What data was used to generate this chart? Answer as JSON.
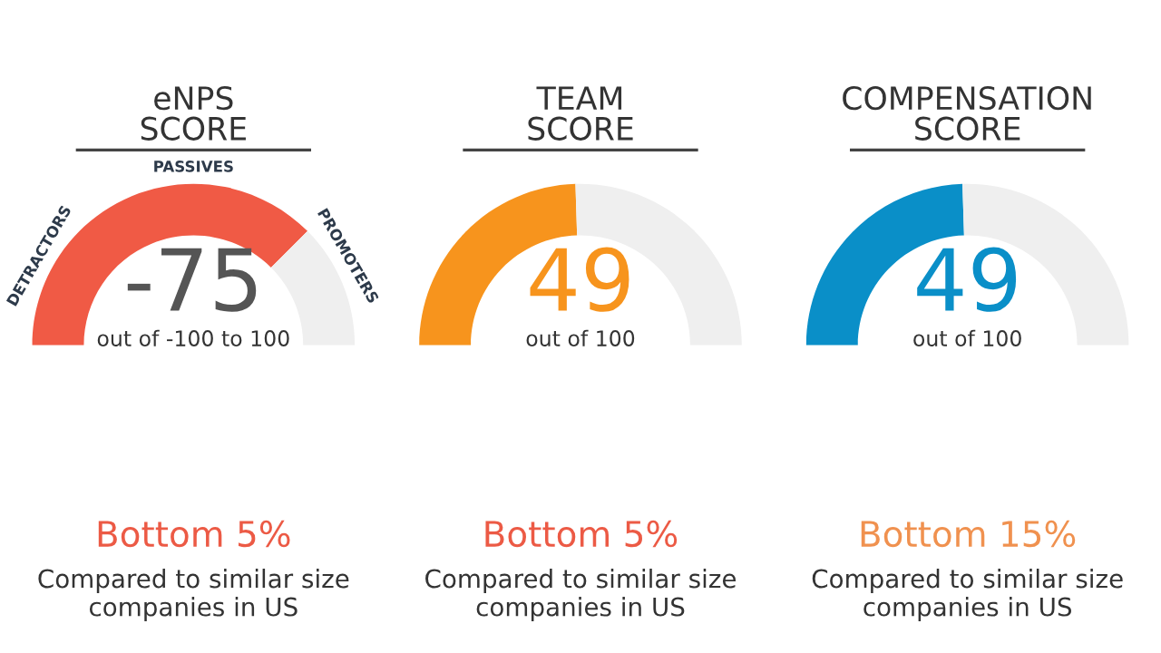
{
  "chart_data": [
    {
      "type": "donut",
      "title": "eNPS\nSCORE",
      "categories": [
        null,
        null
      ],
      "values": [
        75,
        25
      ],
      "colors": [
        "#f05a45",
        "#efefef"
      ],
      "annotations": [
        "-75",
        "out of -100 to 100",
        "Bottom 5%",
        "Compared to similar size\ncompanies in US",
        "DETRACTORS",
        "PASSIVES",
        "PROMOTERS"
      ]
    },
    {
      "type": "donut",
      "title": "TEAM\nSCORE",
      "categories": [
        null,
        null
      ],
      "values": [
        49,
        51
      ],
      "colors": [
        "#f7941d",
        "#efefef"
      ],
      "annotations": [
        "49",
        "out of 100",
        "Bottom 5%",
        "Compared to similar size\ncompanies in US"
      ]
    },
    {
      "type": "donut",
      "title": "COMPENSATION\nSCORE",
      "categories": [
        null,
        null
      ],
      "values": [
        49,
        51
      ],
      "colors": [
        "#0a8fc8",
        "#efefef"
      ],
      "annotations": [
        "49",
        "out of 100",
        "Bottom 15%",
        "Compared to similar size\ncompanies in US"
      ]
    }
  ]
}
